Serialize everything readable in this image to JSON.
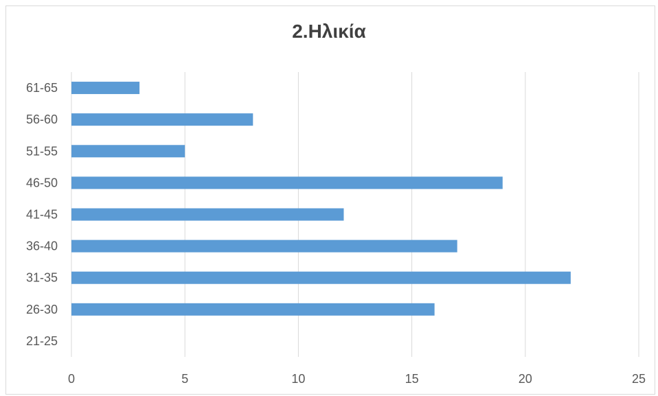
{
  "chart_data": {
    "type": "bar",
    "orientation": "horizontal",
    "title": "2.Ηλικία",
    "categories": [
      "21-25",
      "26-30",
      "31-35",
      "36-40",
      "41-45",
      "46-50",
      "51-55",
      "56-60",
      "61-65"
    ],
    "values": [
      0,
      16,
      22,
      17,
      12,
      19,
      5,
      8,
      3
    ],
    "xlim": [
      0,
      25
    ],
    "xticks": [
      0,
      5,
      10,
      15,
      20,
      25
    ],
    "grid": "vertical",
    "legend": "none",
    "bar_color": "#5b9bd5"
  }
}
